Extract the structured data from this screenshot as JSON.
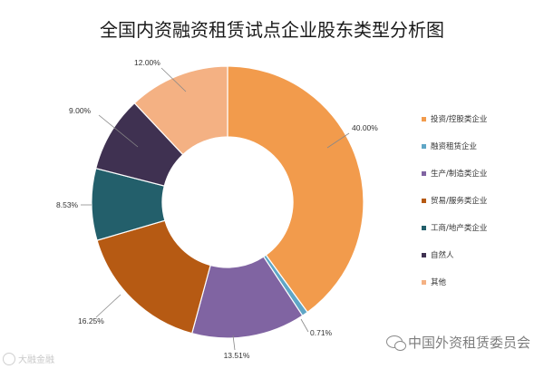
{
  "chart_data": {
    "type": "pie",
    "title": "全国内资融资租赁试点企业股东类型分析图",
    "categories": [
      "投资/控股类企业",
      "融资租赁企业",
      "生产/制造类企业",
      "贸易/服务类企业",
      "工商/地产类企业",
      "自然人",
      "其他"
    ],
    "values": [
      40.0,
      0.71,
      13.51,
      16.25,
      8.53,
      9.0,
      12.0
    ],
    "value_labels": [
      "40.00%",
      "0.71%",
      "13.51%",
      "16.25%",
      "8.53%",
      "9.00%",
      "12.00%"
    ],
    "colors": [
      "#F29B4C",
      "#5FA6C6",
      "#8064A2",
      "#B65A13",
      "#235F6B",
      "#3F3151",
      "#F4B183"
    ],
    "donut": true,
    "legend_position": "right"
  },
  "watermarks": {
    "right": "中国外资租赁委员会",
    "left": "大融金融"
  }
}
